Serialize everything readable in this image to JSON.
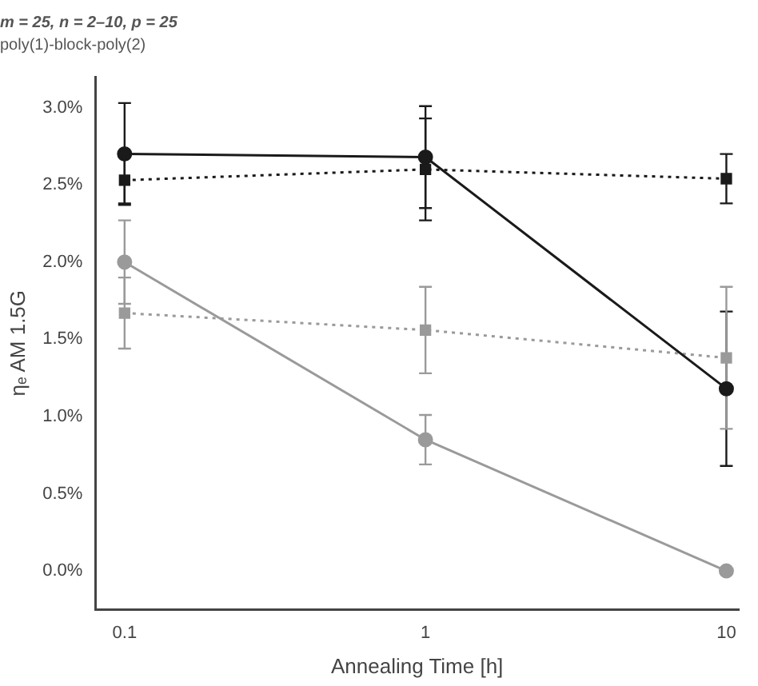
{
  "chart_data": {
    "type": "line",
    "title": "m = 25, n = 2–10, p = 25",
    "subtitle": "poly(1)-block-poly(2)",
    "xlabel": "Annealing Time [h]",
    "ylabel": "ηₑ AM 1.5G",
    "log": "x",
    "grid": false,
    "legend": false,
    "x": [
      0.1,
      1,
      10
    ],
    "xlim": [
      0.08,
      11
    ],
    "xticks": [
      0.1,
      1,
      10
    ],
    "ylim": [
      -0.25,
      3.2
    ],
    "yticks": [
      {
        "value": 0,
        "label": "0.0%"
      },
      {
        "value": 0.5,
        "label": "0.5%"
      },
      {
        "value": 1,
        "label": "1.0%"
      },
      {
        "value": 1.5,
        "label": "1.5%"
      },
      {
        "value": 2,
        "label": "2.0%"
      },
      {
        "value": 2.5,
        "label": "2.5%"
      },
      {
        "value": 3,
        "label": "3.0%"
      }
    ],
    "series": [
      {
        "color": "#1a1a1a",
        "values": [
          2.7,
          2.68,
          1.18
        ],
        "errors": [
          0.33,
          0.33,
          0.5
        ],
        "marker": "circle",
        "line_style": "solid"
      },
      {
        "color": "#1a1a1a",
        "values": [
          2.53,
          2.6,
          2.54
        ],
        "errors": [
          0.15,
          0.33,
          0.16
        ],
        "marker": "square",
        "line_style": "dotted"
      },
      {
        "color": "#9a9a9a",
        "values": [
          1.67,
          1.56,
          1.38
        ],
        "errors": [
          0.23,
          0.28,
          0.46
        ],
        "marker": "square",
        "line_style": "dotted"
      },
      {
        "color": "#9a9a9a",
        "values": [
          2,
          0.85,
          0
        ],
        "errors": [
          0.27,
          0.16,
          null
        ],
        "marker": "circle",
        "line_style": "solid"
      }
    ]
  }
}
